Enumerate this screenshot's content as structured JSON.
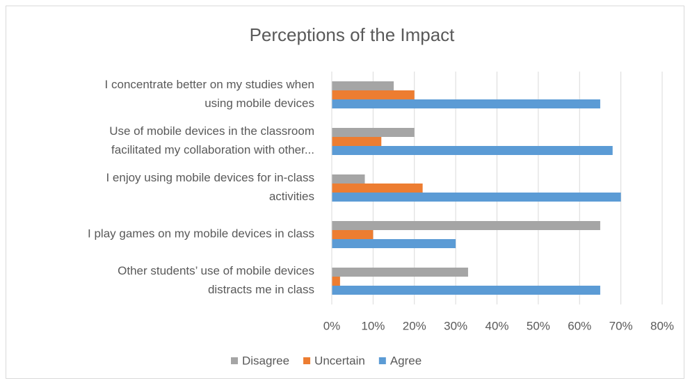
{
  "chart_data": {
    "type": "hbar",
    "title": "Perceptions of the Impact",
    "categories": [
      "I concentrate better on my studies when using mobile devices",
      "Use of mobile devices in the classroom facilitated my collaboration with other...",
      "I enjoy using mobile devices for in-class activities",
      "I play games on my mobile devices in class",
      "Other students’ use of mobile devices distracts me in class"
    ],
    "series": [
      {
        "name": "Disagree",
        "color": "#a5a5a5",
        "values": [
          15,
          20,
          8,
          65,
          33
        ]
      },
      {
        "name": "Uncertain",
        "color": "#ed7d31",
        "values": [
          20,
          12,
          22,
          10,
          2
        ]
      },
      {
        "name": "Agree",
        "color": "#5b9bd5",
        "values": [
          65,
          68,
          70,
          30,
          65
        ]
      }
    ],
    "xlim": [
      0,
      80
    ],
    "xticks": [
      {
        "value": 0,
        "label": "0%"
      },
      {
        "value": 10,
        "label": "10%"
      },
      {
        "value": 20,
        "label": "20%"
      },
      {
        "value": 30,
        "label": "30%"
      },
      {
        "value": 40,
        "label": "40%"
      },
      {
        "value": 50,
        "label": "50%"
      },
      {
        "value": 60,
        "label": "60%"
      },
      {
        "value": 70,
        "label": "70%"
      },
      {
        "value": 80,
        "label": "80%"
      }
    ],
    "grid": true,
    "legend": "bottom"
  }
}
